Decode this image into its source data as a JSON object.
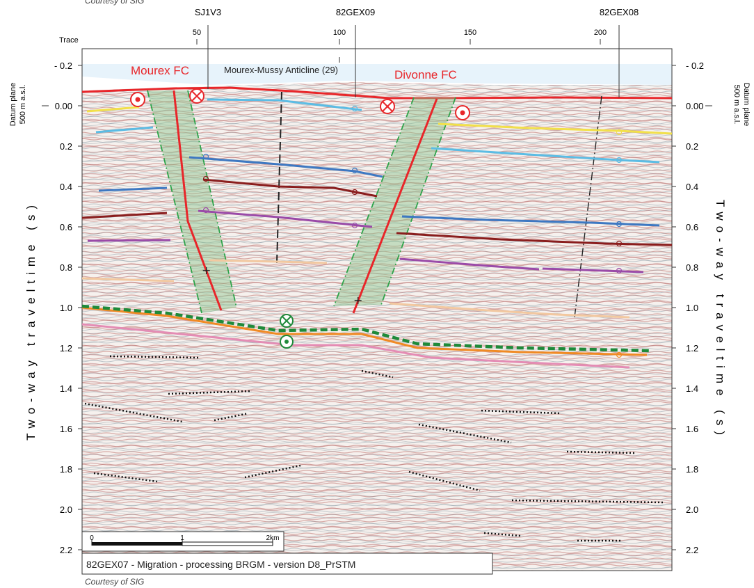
{
  "credits": {
    "top": "Courtesy of SIG",
    "bottom": "Courtesy of SIG"
  },
  "trace_label": "Trace",
  "trace_ticks": [
    "50",
    "100",
    "150",
    "200"
  ],
  "wells": [
    "SJ1V3",
    "82GEX09",
    "82GEX08"
  ],
  "datum": {
    "line1": "Datum plane",
    "line2": "500 m a.s.l."
  },
  "y_axis_title": "Two-way traveltime (s)",
  "left_ticks": [
    "- 0.2",
    "0.00",
    "0.2",
    "0.4",
    "0.6",
    "0.8",
    "1.0",
    "1.2",
    "1.4",
    "1.6",
    "1.8",
    "2.0",
    "2.2"
  ],
  "right_ticks": [
    "- 0.2",
    "0.00",
    "0.2",
    "0.4",
    "0.6",
    "0.8",
    "1.0",
    "1.2",
    "1.4",
    "1.6",
    "1.8",
    "2.0",
    "2.2"
  ],
  "labels": {
    "mourex_fc": "Mourex FC",
    "anticline": "Mourex-Mussy Anticline (29)",
    "divonne_fc": "Divonne FC"
  },
  "scale_bar": {
    "ticks": [
      "0",
      "1",
      "2km"
    ]
  },
  "caption": "82GEX07 - Migration - processing BRGM - version D8_PrSTM",
  "colors": {
    "fault": "#e8262a",
    "fault_zone": "#8ac48a",
    "decollement": "#1f8a3a",
    "horizon_cyan": "#5bbce4",
    "horizon_blue": "#3d78c2",
    "horizon_maroon": "#8a1d1d",
    "horizon_purple": "#9a4aa8",
    "horizon_yellow": "#f2e04a",
    "horizon_orange": "#f08a24",
    "horizon_pink": "#e48cb4",
    "horizon_tan": "#f2c8a0"
  }
}
